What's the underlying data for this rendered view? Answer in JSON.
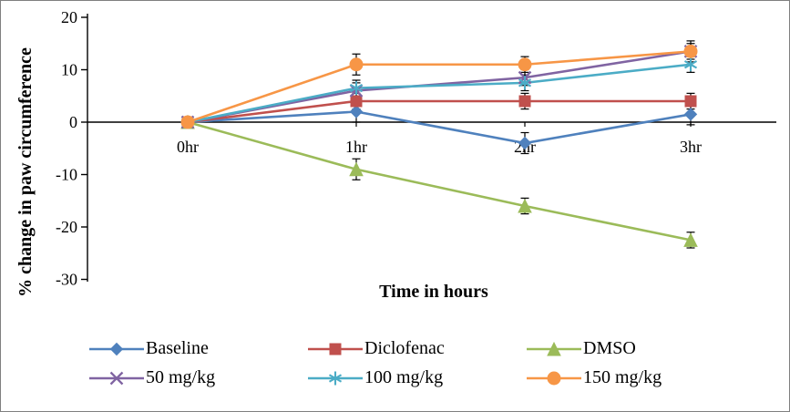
{
  "chart_data": {
    "type": "line",
    "title": "",
    "xlabel": "Time in hours",
    "ylabel": "% change in paw circumference",
    "categories": [
      "0hr",
      "1hr",
      "2hr",
      "3hr"
    ],
    "ylim": [
      -30,
      20
    ],
    "yticks": [
      20,
      10,
      0,
      -10,
      -20,
      -30
    ],
    "grid": false,
    "legend_position": "bottom",
    "series": [
      {
        "name": "Baseline",
        "color": "#4F81BD",
        "marker": "diamond",
        "values": [
          0,
          2,
          -4,
          1.5
        ],
        "errors": [
          0.5,
          2,
          2,
          2
        ]
      },
      {
        "name": "Diclofenac",
        "color": "#C0504D",
        "marker": "square",
        "values": [
          0,
          4,
          4,
          4
        ],
        "errors": [
          0.5,
          1.5,
          1.5,
          1.5
        ]
      },
      {
        "name": "DMSO",
        "color": "#9BBB59",
        "marker": "triangle",
        "values": [
          0,
          -9,
          -16,
          -22.5
        ],
        "errors": [
          0.5,
          2,
          1.5,
          1.5
        ]
      },
      {
        "name": "50 mg/kg",
        "color": "#8064A2",
        "marker": "x",
        "values": [
          0,
          6,
          8.5,
          13.5
        ],
        "errors": [
          0.5,
          1.5,
          1.5,
          1.5
        ]
      },
      {
        "name": "100 mg/kg",
        "color": "#4BACC6",
        "marker": "asterisk",
        "values": [
          0,
          6.5,
          7.5,
          11
        ],
        "errors": [
          0.5,
          1.5,
          1.5,
          1.5
        ]
      },
      {
        "name": "150 mg/kg",
        "color": "#F79646",
        "marker": "circle",
        "values": [
          0,
          11,
          11,
          13.5
        ],
        "errors": [
          0.5,
          2,
          1.5,
          2
        ]
      }
    ]
  }
}
